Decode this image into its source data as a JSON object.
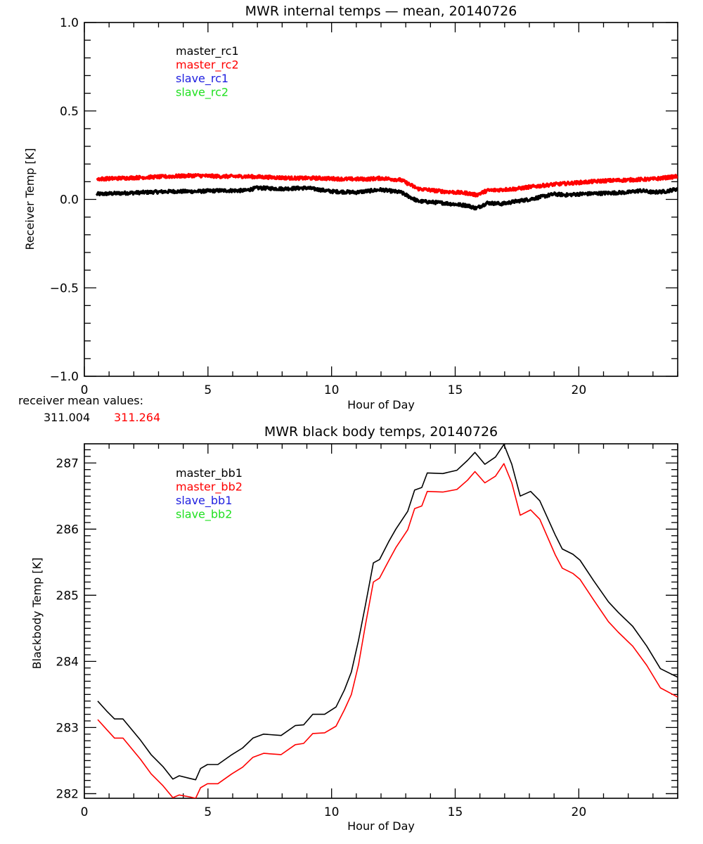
{
  "chart_data": [
    {
      "type": "line",
      "title": "MWR internal temps — mean, 20140726",
      "xlabel": "Hour of Day",
      "ylabel": "Receiver Temp [K]",
      "xlim": [
        0,
        24
      ],
      "ylim": [
        -1.0,
        1.0
      ],
      "xticks": [
        0,
        5,
        10,
        15,
        20
      ],
      "xtick_labels": [
        "0",
        "5",
        "10",
        "15",
        "20"
      ],
      "xminor_step": 1,
      "yticks": [
        -1.0,
        -0.5,
        0.0,
        0.5,
        1.0
      ],
      "ytick_labels": [
        "−1.0",
        "−0.5",
        "0.0",
        "0.5",
        "1.0"
      ],
      "yminor_step": 0.1,
      "grid": false,
      "legend_position": "top-left",
      "legend": [
        {
          "name": "master_rc1",
          "color": "#000000"
        },
        {
          "name": "master_rc2",
          "color": "#ff0000"
        },
        {
          "name": "slave_rc1",
          "color": "#2020e0"
        },
        {
          "name": "slave_rc2",
          "color": "#20e020"
        }
      ],
      "series": [
        {
          "name": "master_rc1",
          "color": "#000000",
          "noisy": true,
          "x": [
            0.5,
            1.5,
            2.5,
            3.5,
            4.5,
            5.5,
            6.5,
            7.0,
            8.0,
            9.0,
            10.0,
            11.0,
            12.0,
            12.8,
            13.5,
            14.5,
            15.5,
            15.85,
            16.3,
            16.9,
            17.5,
            18.0,
            18.5,
            19.0,
            19.5,
            20.0,
            21.0,
            22.0,
            22.5,
            23.0,
            23.5,
            24.0
          ],
          "y": [
            0.03,
            0.035,
            0.04,
            0.045,
            0.045,
            0.05,
            0.05,
            0.065,
            0.06,
            0.065,
            0.045,
            0.04,
            0.055,
            0.04,
            -0.01,
            -0.02,
            -0.035,
            -0.05,
            -0.02,
            -0.025,
            -0.01,
            0.0,
            0.015,
            0.03,
            0.025,
            0.03,
            0.035,
            0.04,
            0.05,
            0.04,
            0.045,
            0.06
          ]
        },
        {
          "name": "master_rc2",
          "color": "#ff0000",
          "noisy": true,
          "x": [
            0.5,
            1.5,
            2.5,
            3.5,
            4.5,
            5.5,
            6.5,
            7.5,
            8.5,
            9.5,
            10.5,
            11.5,
            12.0,
            12.8,
            13.5,
            14.5,
            15.5,
            15.85,
            16.3,
            16.9,
            17.5,
            18.0,
            19.0,
            20.0,
            21.0,
            22.0,
            23.0,
            24.0
          ],
          "y": [
            0.115,
            0.12,
            0.125,
            0.13,
            0.135,
            0.13,
            0.13,
            0.125,
            0.12,
            0.12,
            0.115,
            0.115,
            0.12,
            0.11,
            0.06,
            0.045,
            0.035,
            0.025,
            0.05,
            0.055,
            0.06,
            0.07,
            0.085,
            0.095,
            0.105,
            0.11,
            0.115,
            0.13
          ]
        }
      ],
      "annotation": {
        "label": "receiver mean values:",
        "values": [
          {
            "text": "311.004",
            "color": "#000000"
          },
          {
            "text": "311.264",
            "color": "#ff0000"
          }
        ]
      }
    },
    {
      "type": "line",
      "title": "MWR black body temps, 20140726",
      "xlabel": "Hour of Day",
      "ylabel": "Blackbody Temp [K]",
      "xlim": [
        0,
        24
      ],
      "ylim": [
        281.93,
        287.29
      ],
      "xticks": [
        0,
        5,
        10,
        15,
        20
      ],
      "xtick_labels": [
        "0",
        "5",
        "10",
        "15",
        "20"
      ],
      "xminor_step": 1,
      "yticks": [
        282,
        283,
        284,
        285,
        286,
        287
      ],
      "ytick_labels": [
        "282",
        "283",
        "284",
        "285",
        "286",
        "287"
      ],
      "yminor_step": 0.1,
      "grid": false,
      "legend_position": "top-left",
      "legend": [
        {
          "name": "master_bb1",
          "color": "#000000"
        },
        {
          "name": "master_bb2",
          "color": "#ff0000"
        },
        {
          "name": "slave_bb1",
          "color": "#2020e0"
        },
        {
          "name": "slave_bb2",
          "color": "#20e020"
        }
      ],
      "series": [
        {
          "name": "master_bb1",
          "color": "#000000",
          "x": [
            0.54,
            0.9,
            1.22,
            1.56,
            2.27,
            2.7,
            3.18,
            3.58,
            3.84,
            4.27,
            4.5,
            4.7,
            4.98,
            5.4,
            5.97,
            6.4,
            6.82,
            7.25,
            7.96,
            8.53,
            8.87,
            9.24,
            9.72,
            10.18,
            10.52,
            10.8,
            11.09,
            11.37,
            11.69,
            11.94,
            12.31,
            12.6,
            13.08,
            13.36,
            13.65,
            13.87,
            14.5,
            15.07,
            15.5,
            15.8,
            16.2,
            16.63,
            16.97,
            17.29,
            17.63,
            18.05,
            18.42,
            19.05,
            19.33,
            19.76,
            20.05,
            20.6,
            21.2,
            21.6,
            22.18,
            22.75,
            23.3,
            24.0
          ],
          "y": [
            283.4,
            283.25,
            283.13,
            283.13,
            282.81,
            282.59,
            282.41,
            282.22,
            282.27,
            282.23,
            282.21,
            282.38,
            282.44,
            282.44,
            282.59,
            282.69,
            282.84,
            282.9,
            282.88,
            283.03,
            283.04,
            283.2,
            283.2,
            283.31,
            283.57,
            283.84,
            284.32,
            284.85,
            285.49,
            285.54,
            285.81,
            286.0,
            286.27,
            286.59,
            286.63,
            286.85,
            286.84,
            286.89,
            287.04,
            287.16,
            286.98,
            287.09,
            287.28,
            286.98,
            286.5,
            286.57,
            286.43,
            285.91,
            285.7,
            285.62,
            285.53,
            285.22,
            284.9,
            284.74,
            284.53,
            284.23,
            283.89,
            283.76
          ]
        },
        {
          "name": "master_bb2",
          "color": "#ff0000",
          "x": [
            0.54,
            0.9,
            1.22,
            1.56,
            2.27,
            2.7,
            3.18,
            3.58,
            3.84,
            4.27,
            4.5,
            4.7,
            4.98,
            5.4,
            5.97,
            6.4,
            6.82,
            7.25,
            7.96,
            8.53,
            8.87,
            9.24,
            9.72,
            10.18,
            10.52,
            10.8,
            11.09,
            11.37,
            11.69,
            11.94,
            12.31,
            12.6,
            13.08,
            13.36,
            13.65,
            13.87,
            14.5,
            15.07,
            15.5,
            15.8,
            16.2,
            16.63,
            16.97,
            17.29,
            17.63,
            18.05,
            18.42,
            19.05,
            19.33,
            19.76,
            20.05,
            20.6,
            21.2,
            21.6,
            22.18,
            22.75,
            23.3,
            24.0
          ],
          "y": [
            283.12,
            282.97,
            282.84,
            282.84,
            282.52,
            282.3,
            282.12,
            281.94,
            281.98,
            281.95,
            281.93,
            282.09,
            282.15,
            282.15,
            282.3,
            282.4,
            282.55,
            282.61,
            282.59,
            282.74,
            282.76,
            282.91,
            282.92,
            283.02,
            283.27,
            283.5,
            283.95,
            284.55,
            285.2,
            285.26,
            285.52,
            285.72,
            285.99,
            286.31,
            286.35,
            286.57,
            286.56,
            286.6,
            286.74,
            286.87,
            286.7,
            286.8,
            286.99,
            286.7,
            286.21,
            286.29,
            286.15,
            285.61,
            285.41,
            285.33,
            285.24,
            284.93,
            284.6,
            284.44,
            284.23,
            283.94,
            283.6,
            283.46
          ]
        }
      ]
    }
  ]
}
